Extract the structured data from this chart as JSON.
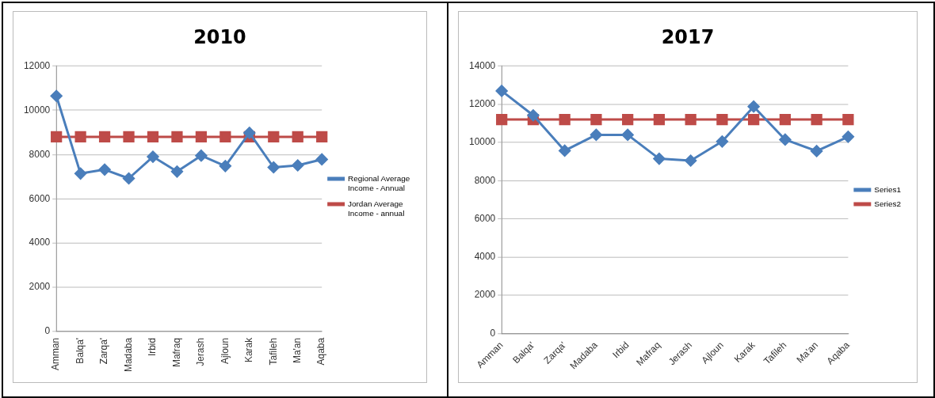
{
  "chart_data": [
    {
      "type": "line",
      "title": "2010",
      "categories": [
        "Amman",
        "Balqa'",
        "Zarqa'",
        "Madaba",
        "Irbid",
        "Mafraq",
        "Jerash",
        "Ajloun",
        "Karak",
        "Tafileh",
        "Ma'an",
        "Aqaba"
      ],
      "series": [
        {
          "name": "Regional Average Income - Annual",
          "color": "#4a7ebb",
          "marker": "diamond",
          "values": [
            10650,
            7140,
            7320,
            6920,
            7900,
            7230,
            7950,
            7480,
            8980,
            7420,
            7510,
            7780
          ]
        },
        {
          "name": "Jordan Average Income - annual",
          "color": "#be4b48",
          "marker": "square",
          "values": [
            8800,
            8800,
            8800,
            8800,
            8800,
            8800,
            8800,
            8800,
            8800,
            8800,
            8800,
            8800
          ]
        }
      ],
      "ylim": [
        0,
        12000
      ],
      "yticks": [
        0,
        2000,
        4000,
        6000,
        8000,
        10000,
        12000
      ],
      "grid": "y",
      "legend": "right"
    },
    {
      "type": "line",
      "title": "2017",
      "categories": [
        "Amman",
        "Balqa'",
        "Zarqa'",
        "Madaba",
        "Irbid",
        "Mafraq",
        "Jerash",
        "Ajloun",
        "Karak",
        "Tafileh",
        "Ma'an",
        "Aqaba"
      ],
      "series": [
        {
          "name": "Series1",
          "color": "#4a7ebb",
          "marker": "diamond",
          "values": [
            12700,
            11420,
            9570,
            10400,
            10400,
            9150,
            9050,
            10050,
            11880,
            10150,
            9550,
            10300
          ]
        },
        {
          "name": "Series2",
          "color": "#be4b48",
          "marker": "square",
          "values": [
            11200,
            11200,
            11200,
            11200,
            11200,
            11200,
            11200,
            11200,
            11200,
            11200,
            11200,
            11200
          ]
        }
      ],
      "ylim": [
        0,
        14000
      ],
      "yticks": [
        0,
        2000,
        4000,
        6000,
        8000,
        10000,
        12000,
        14000
      ],
      "grid": "y",
      "legend": "right"
    }
  ]
}
